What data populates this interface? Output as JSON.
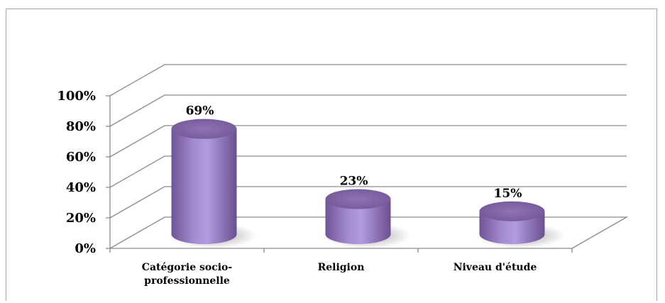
{
  "chart_data": {
    "type": "bar",
    "style": "3d-cylinder",
    "categories": [
      [
        "Catégorie socio-",
        "professionnelle"
      ],
      [
        "Religion"
      ],
      [
        "Niveau d'étude"
      ]
    ],
    "series": [
      {
        "values": [
          69,
          23,
          15
        ],
        "data_labels": [
          "69%",
          "23%",
          "15%"
        ]
      }
    ],
    "y_ticks": [
      "0%",
      "20%",
      "40%",
      "60%",
      "80%",
      "100%"
    ],
    "ylim": [
      0,
      100
    ],
    "grid": true,
    "bar_color": "#9b80c6",
    "grid_color": "#8c8c8c",
    "legend": "none"
  }
}
